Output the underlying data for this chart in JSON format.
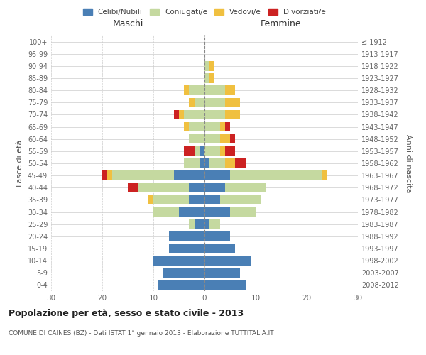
{
  "age_groups": [
    "0-4",
    "5-9",
    "10-14",
    "15-19",
    "20-24",
    "25-29",
    "30-34",
    "35-39",
    "40-44",
    "45-49",
    "50-54",
    "55-59",
    "60-64",
    "65-69",
    "70-74",
    "75-79",
    "80-84",
    "85-89",
    "90-94",
    "95-99",
    "100+"
  ],
  "birth_years": [
    "2008-2012",
    "2003-2007",
    "1998-2002",
    "1993-1997",
    "1988-1992",
    "1983-1987",
    "1978-1982",
    "1973-1977",
    "1968-1972",
    "1963-1967",
    "1958-1962",
    "1953-1957",
    "1948-1952",
    "1943-1947",
    "1938-1942",
    "1933-1937",
    "1928-1932",
    "1923-1927",
    "1918-1922",
    "1913-1917",
    "≤ 1912"
  ],
  "male": {
    "celibi": [
      9,
      8,
      10,
      7,
      7,
      2,
      5,
      3,
      3,
      6,
      1,
      1,
      0,
      0,
      0,
      0,
      0,
      0,
      0,
      0,
      0
    ],
    "coniugati": [
      0,
      0,
      0,
      0,
      0,
      1,
      5,
      7,
      10,
      12,
      3,
      1,
      3,
      3,
      4,
      2,
      3,
      0,
      0,
      0,
      0
    ],
    "vedovi": [
      0,
      0,
      0,
      0,
      0,
      0,
      0,
      1,
      0,
      1,
      0,
      0,
      0,
      1,
      1,
      1,
      1,
      0,
      0,
      0,
      0
    ],
    "divorziati": [
      0,
      0,
      0,
      0,
      0,
      0,
      0,
      0,
      2,
      1,
      0,
      2,
      0,
      0,
      1,
      0,
      0,
      0,
      0,
      0,
      0
    ]
  },
  "female": {
    "nubili": [
      8,
      7,
      9,
      6,
      5,
      1,
      5,
      3,
      4,
      5,
      1,
      0,
      0,
      0,
      0,
      0,
      0,
      0,
      0,
      0,
      0
    ],
    "coniugate": [
      0,
      0,
      0,
      0,
      0,
      2,
      5,
      8,
      8,
      18,
      3,
      3,
      3,
      3,
      4,
      4,
      4,
      1,
      1,
      0,
      0
    ],
    "vedove": [
      0,
      0,
      0,
      0,
      0,
      0,
      0,
      0,
      0,
      1,
      2,
      1,
      2,
      1,
      3,
      3,
      2,
      1,
      1,
      0,
      0
    ],
    "divorziate": [
      0,
      0,
      0,
      0,
      0,
      0,
      0,
      0,
      0,
      0,
      2,
      2,
      1,
      1,
      0,
      0,
      0,
      0,
      0,
      0,
      0
    ]
  },
  "colors": {
    "celibi_nubili": "#4a7fb5",
    "coniugati": "#c5d9a0",
    "vedovi": "#f0c040",
    "divorziati": "#cc2222"
  },
  "xlim": 30,
  "title": "Popolazione per età, sesso e stato civile - 2013",
  "subtitle": "COMUNE DI CAINES (BZ) - Dati ISTAT 1° gennaio 2013 - Elaborazione TUTTITALIA.IT",
  "ylabel_left": "Fasce di età",
  "ylabel_right": "Anni di nascita",
  "xlabel_left": "Maschi",
  "xlabel_right": "Femmine",
  "background_color": "#ffffff",
  "grid_color": "#cccccc"
}
